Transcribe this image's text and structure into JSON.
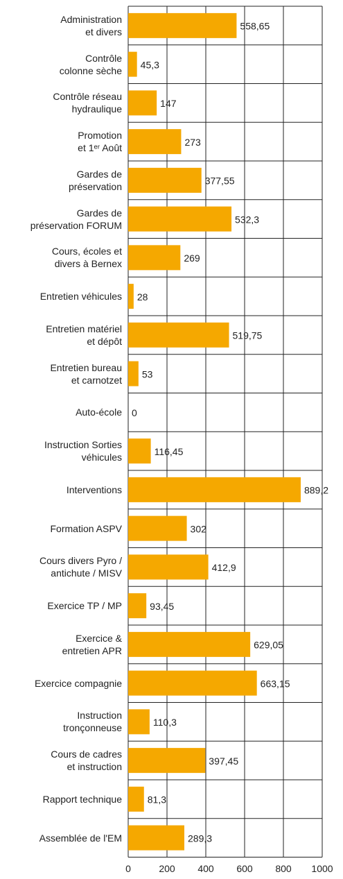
{
  "chart_data": {
    "type": "hbar",
    "categories": [
      "Administration\net divers",
      "Contrôle\ncolonne sèche",
      "Contrôle réseau\nhydraulique",
      "Promotion\net 1ᵉʳ Août",
      "Gardes de\npréservation",
      "Gardes de\npréservation FORUM",
      "Cours, écoles et\ndivers à Bernex",
      "Entretien véhicules",
      "Entretien matériel\net dépôt",
      "Entretien bureau\net carnotzet",
      "Auto-école",
      "Instruction Sorties\nvéhicules",
      "Interventions",
      "Formation ASPV",
      "Cours divers Pyro /\nantichute / MISV",
      "Exercice  TP / MP",
      "Exercice &\nentretien APR",
      "Exercice compagnie",
      "Instruction\ntronçonneuse",
      "Cours de cadres\net instruction",
      "Rapport technique",
      "Assemblée de l'EM"
    ],
    "values": [
      558.65,
      45.3,
      147,
      273,
      377.55,
      532.3,
      269,
      28,
      519.75,
      53,
      0,
      116.45,
      889.2,
      302,
      412.9,
      93.45,
      629.05,
      663.15,
      110.3,
      397.45,
      81.3,
      289.3
    ],
    "value_labels": [
      "558,65",
      "45,3",
      "147",
      "273",
      "377,55",
      "532,3",
      "269",
      "28",
      "519,75",
      "53",
      "0",
      "116,45",
      "889,2",
      "302",
      "412,9",
      "93,45",
      "629,05",
      "663,15",
      "110,3",
      "397,45",
      "81,3",
      "289,3"
    ],
    "color": "#f5a800",
    "xlim": [
      0,
      1000
    ],
    "xticks": [
      0,
      200,
      400,
      600,
      800,
      1000
    ],
    "grid": true
  }
}
